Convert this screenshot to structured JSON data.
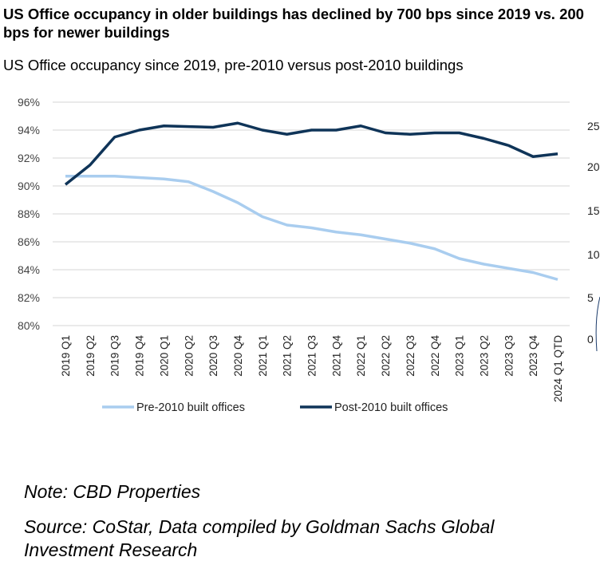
{
  "title": "US Office occupancy in older buildings has declined by 700 bps since 2019 vs. 200 bps for newer buildings",
  "subtitle": "US Office occupancy since 2019, pre-2010 versus post-2010 buildings",
  "note": "Note: CBD Properties",
  "source": "Source: CoStar, Data compiled by Goldman Sachs Global Investment Research",
  "right_partial_ticks": [
    "25",
    "20",
    "15",
    "10",
    "5",
    "0"
  ],
  "chart_data": {
    "type": "line",
    "title": "US Office occupancy since 2019, pre-2010 versus post-2010 buildings",
    "x": [
      "2019 Q1",
      "2019 Q2",
      "2019 Q3",
      "2019 Q4",
      "2020 Q1",
      "2020 Q2",
      "2020 Q3",
      "2020 Q4",
      "2021 Q1",
      "2021 Q2",
      "2021 Q3",
      "2021 Q4",
      "2022 Q1",
      "2022 Q2",
      "2022 Q3",
      "2022 Q4",
      "2023 Q1",
      "2023 Q2",
      "2023 Q3",
      "2023 Q4",
      "2024 Q1 QTD"
    ],
    "ylim": [
      80,
      96
    ],
    "yticks": [
      "80%",
      "82%",
      "84%",
      "86%",
      "88%",
      "90%",
      "92%",
      "94%",
      "96%"
    ],
    "grid": true,
    "legend": "bottom",
    "series": [
      {
        "name": "Pre-2010 built offices",
        "color": "#a9cdef",
        "values": [
          90.7,
          90.7,
          90.7,
          90.6,
          90.5,
          90.3,
          89.6,
          88.8,
          87.8,
          87.2,
          87.0,
          86.7,
          86.5,
          86.2,
          85.9,
          85.5,
          84.8,
          84.4,
          84.1,
          83.8,
          83.3
        ]
      },
      {
        "name": "Post-2010 built offices",
        "color": "#0f3458",
        "values": [
          90.1,
          91.5,
          93.5,
          94.0,
          94.3,
          94.25,
          94.2,
          94.5,
          94.0,
          93.7,
          94.0,
          94.0,
          94.3,
          93.8,
          93.7,
          93.8,
          93.8,
          93.4,
          92.9,
          92.1,
          92.3
        ]
      }
    ]
  }
}
